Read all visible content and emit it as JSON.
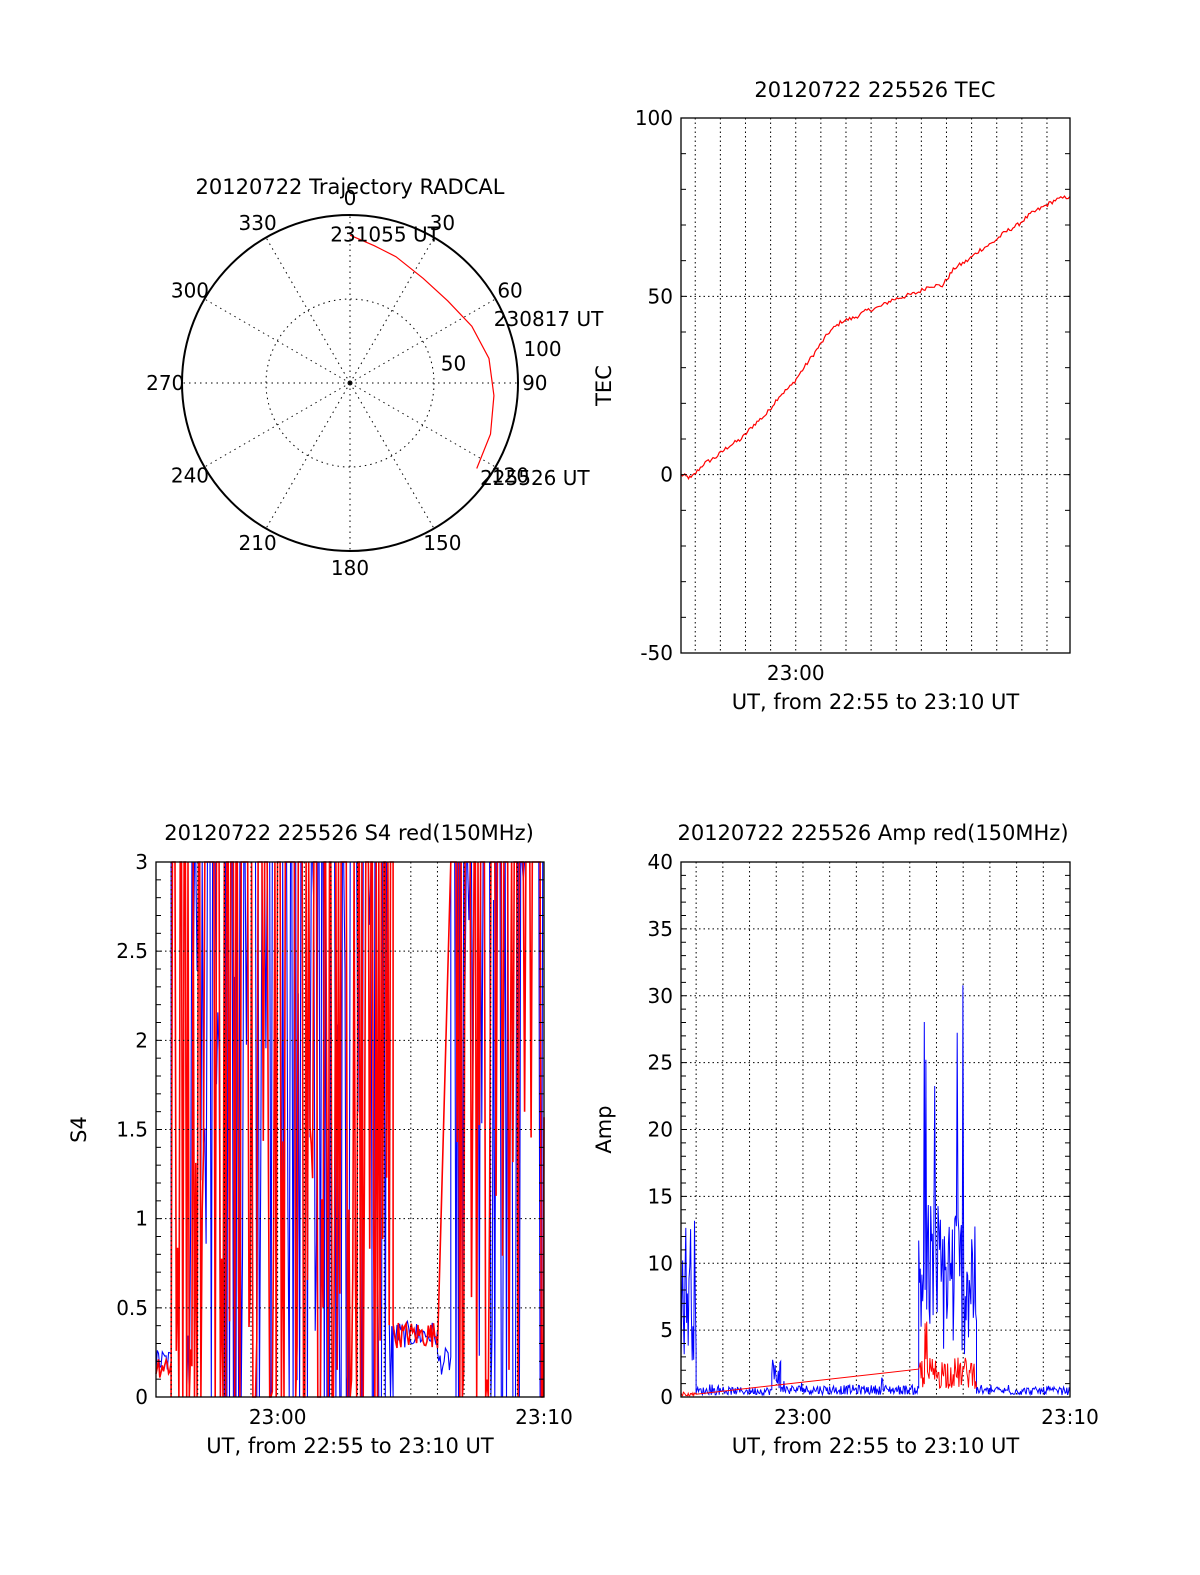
{
  "chart_data": [
    {
      "id": "trajectory",
      "type": "polar",
      "title": "20120722 Trajectory RADCAL",
      "azimuth_labels": [
        "0",
        "30",
        "60",
        "90",
        "120",
        "150",
        "180",
        "210",
        "240",
        "270",
        "300",
        "330"
      ],
      "radius_labels": [
        "50",
        "100"
      ],
      "radius_max": 100,
      "grid": true,
      "track": {
        "color": "#ff0000",
        "points": [
          {
            "az": 0,
            "r": 88
          },
          {
            "az": 10,
            "r": 83
          },
          {
            "az": 20,
            "r": 80
          },
          {
            "az": 35,
            "r": 76
          },
          {
            "az": 50,
            "r": 76
          },
          {
            "az": 65,
            "r": 80
          },
          {
            "az": 80,
            "r": 84
          },
          {
            "az": 95,
            "r": 86
          },
          {
            "az": 110,
            "r": 89
          },
          {
            "az": 124,
            "r": 91
          }
        ]
      },
      "annotations": [
        {
          "text": "231055 UT",
          "az": -3,
          "r": 88
        },
        {
          "text": "230817 UT",
          "az": 68,
          "r": 100
        },
        {
          "text": "225526 UT",
          "az": 124,
          "r": 102
        }
      ]
    },
    {
      "id": "tec",
      "type": "line",
      "title": "20120722 225526 TEC",
      "ylabel": "TEC",
      "xlabel": "UT, from 22:55 to 23:10 UT",
      "xlim": [
        "22:55:26",
        "23:10:55"
      ],
      "ylim": [
        -50,
        100
      ],
      "yticks": [
        "-50",
        "0",
        "50",
        "100"
      ],
      "xtick_labels": [
        {
          "t": "23:00:00",
          "label": "23:00"
        }
      ],
      "grid": true,
      "series": [
        {
          "color": "#ff0000",
          "points": [
            [
              "22:55:26",
              0
            ],
            [
              "22:55:50",
              -1
            ],
            [
              "22:56:20",
              3
            ],
            [
              "22:56:50",
              5
            ],
            [
              "22:57:20",
              8
            ],
            [
              "22:57:50",
              10
            ],
            [
              "22:58:20",
              14
            ],
            [
              "22:58:50",
              17
            ],
            [
              "22:59:20",
              22
            ],
            [
              "22:59:50",
              25
            ],
            [
              "23:00:20",
              30
            ],
            [
              "23:00:50",
              35
            ],
            [
              "23:01:20",
              40
            ],
            [
              "23:01:50",
              43
            ],
            [
              "23:02:20",
              44
            ],
            [
              "23:02:50",
              46
            ],
            [
              "23:03:20",
              47
            ],
            [
              "23:03:50",
              49
            ],
            [
              "23:04:20",
              50
            ],
            [
              "23:04:50",
              51
            ],
            [
              "23:05:20",
              53
            ],
            [
              "23:05:50",
              53
            ],
            [
              "23:06:20",
              58
            ],
            [
              "23:06:50",
              60
            ],
            [
              "23:07:20",
              63
            ],
            [
              "23:07:50",
              65
            ],
            [
              "23:08:20",
              68
            ],
            [
              "23:08:50",
              70
            ],
            [
              "23:09:20",
              73
            ],
            [
              "23:09:50",
              75
            ],
            [
              "23:10:20",
              77
            ],
            [
              "23:10:55",
              78
            ]
          ]
        }
      ]
    },
    {
      "id": "s4",
      "type": "line",
      "title": "20120722 225526 S4 red(150MHz)",
      "ylabel": "S4",
      "xlabel": "UT, from 22:55 to 23:10 UT",
      "xlim": [
        "22:55:26",
        "23:10:00"
      ],
      "ylim": [
        0,
        3
      ],
      "yticks": [
        "0",
        "0.5",
        "1",
        "1.5",
        "2",
        "2.5",
        "3"
      ],
      "xtick_labels": [
        {
          "t": "23:00:00",
          "label": "23:00"
        },
        {
          "t": "23:10:00",
          "label": "23:10"
        }
      ],
      "grid": true,
      "series": [
        {
          "color": "#0000ff",
          "segments": [
            {
              "from": "22:55:26",
              "to": "22:56:00",
              "level": 0.2
            },
            {
              "from": "22:56:00",
              "to": "23:04:20",
              "level": 2.3
            },
            {
              "from": "23:04:20",
              "to": "23:06:00",
              "level": 0.35
            },
            {
              "from": "23:06:00",
              "to": "23:06:30",
              "level": 0.2
            },
            {
              "from": "23:06:30",
              "to": "23:10:00",
              "level": 2.8
            }
          ]
        },
        {
          "color": "#ff0000",
          "segments": [
            {
              "from": "22:55:26",
              "to": "22:56:00",
              "level": 0.18
            },
            {
              "from": "22:56:00",
              "to": "23:04:20",
              "level": 1.2
            },
            {
              "from": "23:04:20",
              "to": "23:06:00",
              "level": 0.35
            },
            {
              "from": "23:06:30",
              "to": "23:10:00",
              "level": 1.5
            }
          ]
        }
      ]
    },
    {
      "id": "amp",
      "type": "line",
      "title": "20120722 225526 Amp red(150MHz)",
      "ylabel": "Amp",
      "xlabel": "UT, from 22:55 to 23:10 UT",
      "xlim": [
        "22:55:26",
        "23:10:00"
      ],
      "ylim": [
        0,
        40
      ],
      "yticks": [
        "0",
        "5",
        "10",
        "15",
        "20",
        "25",
        "30",
        "35",
        "40"
      ],
      "xtick_labels": [
        {
          "t": "23:00:00",
          "label": "23:00"
        },
        {
          "t": "23:10:00",
          "label": "23:10"
        }
      ],
      "grid": true,
      "series": [
        {
          "color": "#0000ff",
          "segments": [
            {
              "from": "22:55:26",
              "to": "22:56:00",
              "level": 9,
              "peak": 12
            },
            {
              "from": "22:56:00",
              "to": "22:58:50",
              "level": 0.5,
              "peak": 1
            },
            {
              "from": "22:58:50",
              "to": "22:59:10",
              "level": 2,
              "peak": 3.5
            },
            {
              "from": "22:59:10",
              "to": "23:04:20",
              "level": 0.6,
              "peak": 1.5
            },
            {
              "from": "23:04:20",
              "to": "23:06:30",
              "level": 10,
              "peak": 32
            },
            {
              "from": "23:06:30",
              "to": "23:10:00",
              "level": 0.5,
              "peak": 1
            }
          ]
        },
        {
          "color": "#ff0000",
          "segments": [
            {
              "from": "22:55:26",
              "to": "22:56:00",
              "level": 0.2,
              "peak": 0.5
            },
            {
              "from": "23:04:20",
              "to": "23:06:30",
              "level": 2,
              "peak": 6
            }
          ]
        }
      ]
    }
  ]
}
